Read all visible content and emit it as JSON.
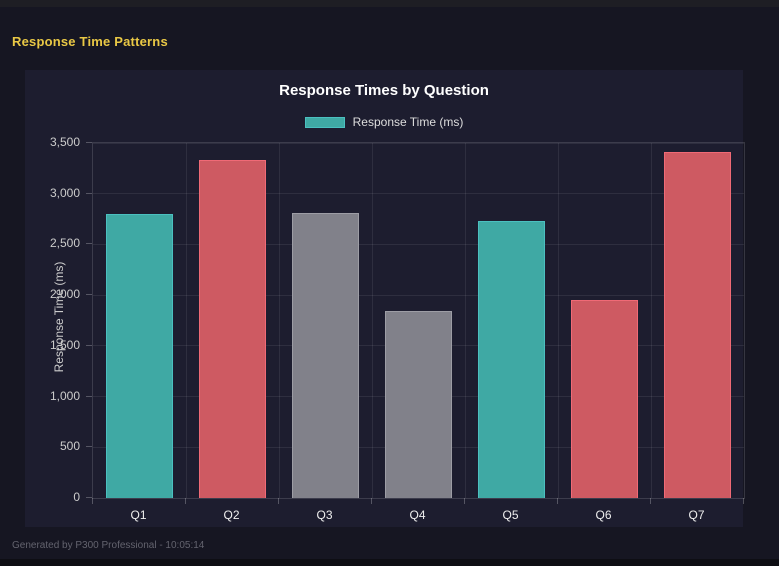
{
  "page": {
    "title": "Response Time Patterns",
    "footer": "Generated by P300 Professional - 10:05:14"
  },
  "chart_data": {
    "type": "bar",
    "title": "Response Times by Question",
    "legend": [
      {
        "label": "Response Time (ms)",
        "color": "#3fa9a4"
      }
    ],
    "legend_position": "top",
    "categories": [
      "Q1",
      "Q2",
      "Q3",
      "Q4",
      "Q5",
      "Q6",
      "Q7"
    ],
    "values": [
      2800,
      3330,
      2810,
      1840,
      2730,
      1950,
      3410
    ],
    "bar_color_keys": [
      "teal",
      "red",
      "gray",
      "gray",
      "teal",
      "red",
      "red"
    ],
    "xlabel": "",
    "ylabel": "Response Time (ms)",
    "ylim": [
      0,
      3500
    ],
    "ytick_step": 500,
    "ytick_labels": [
      "0",
      "500",
      "1,000",
      "1,500",
      "2,000",
      "2,500",
      "3,000",
      "3,500"
    ],
    "grid": true,
    "colors": {
      "teal": {
        "fill": "#3fa9a4",
        "border": "#4bc0c0"
      },
      "red": {
        "fill": "#ce5a62",
        "border": "#f06a76"
      },
      "gray": {
        "fill": "#81818a",
        "border": "#9d9da5"
      }
    }
  },
  "theme": {
    "page_bg": "#161622",
    "card_bg": "#1d1d2f",
    "top_strip": "#1e1e24",
    "title_yellow": "#e9c845",
    "grid_color": "rgba(255,255,255,0.08)",
    "text_primary": "#ffffff",
    "text_secondary": "#cccccc",
    "footer_text": "#63636e"
  }
}
